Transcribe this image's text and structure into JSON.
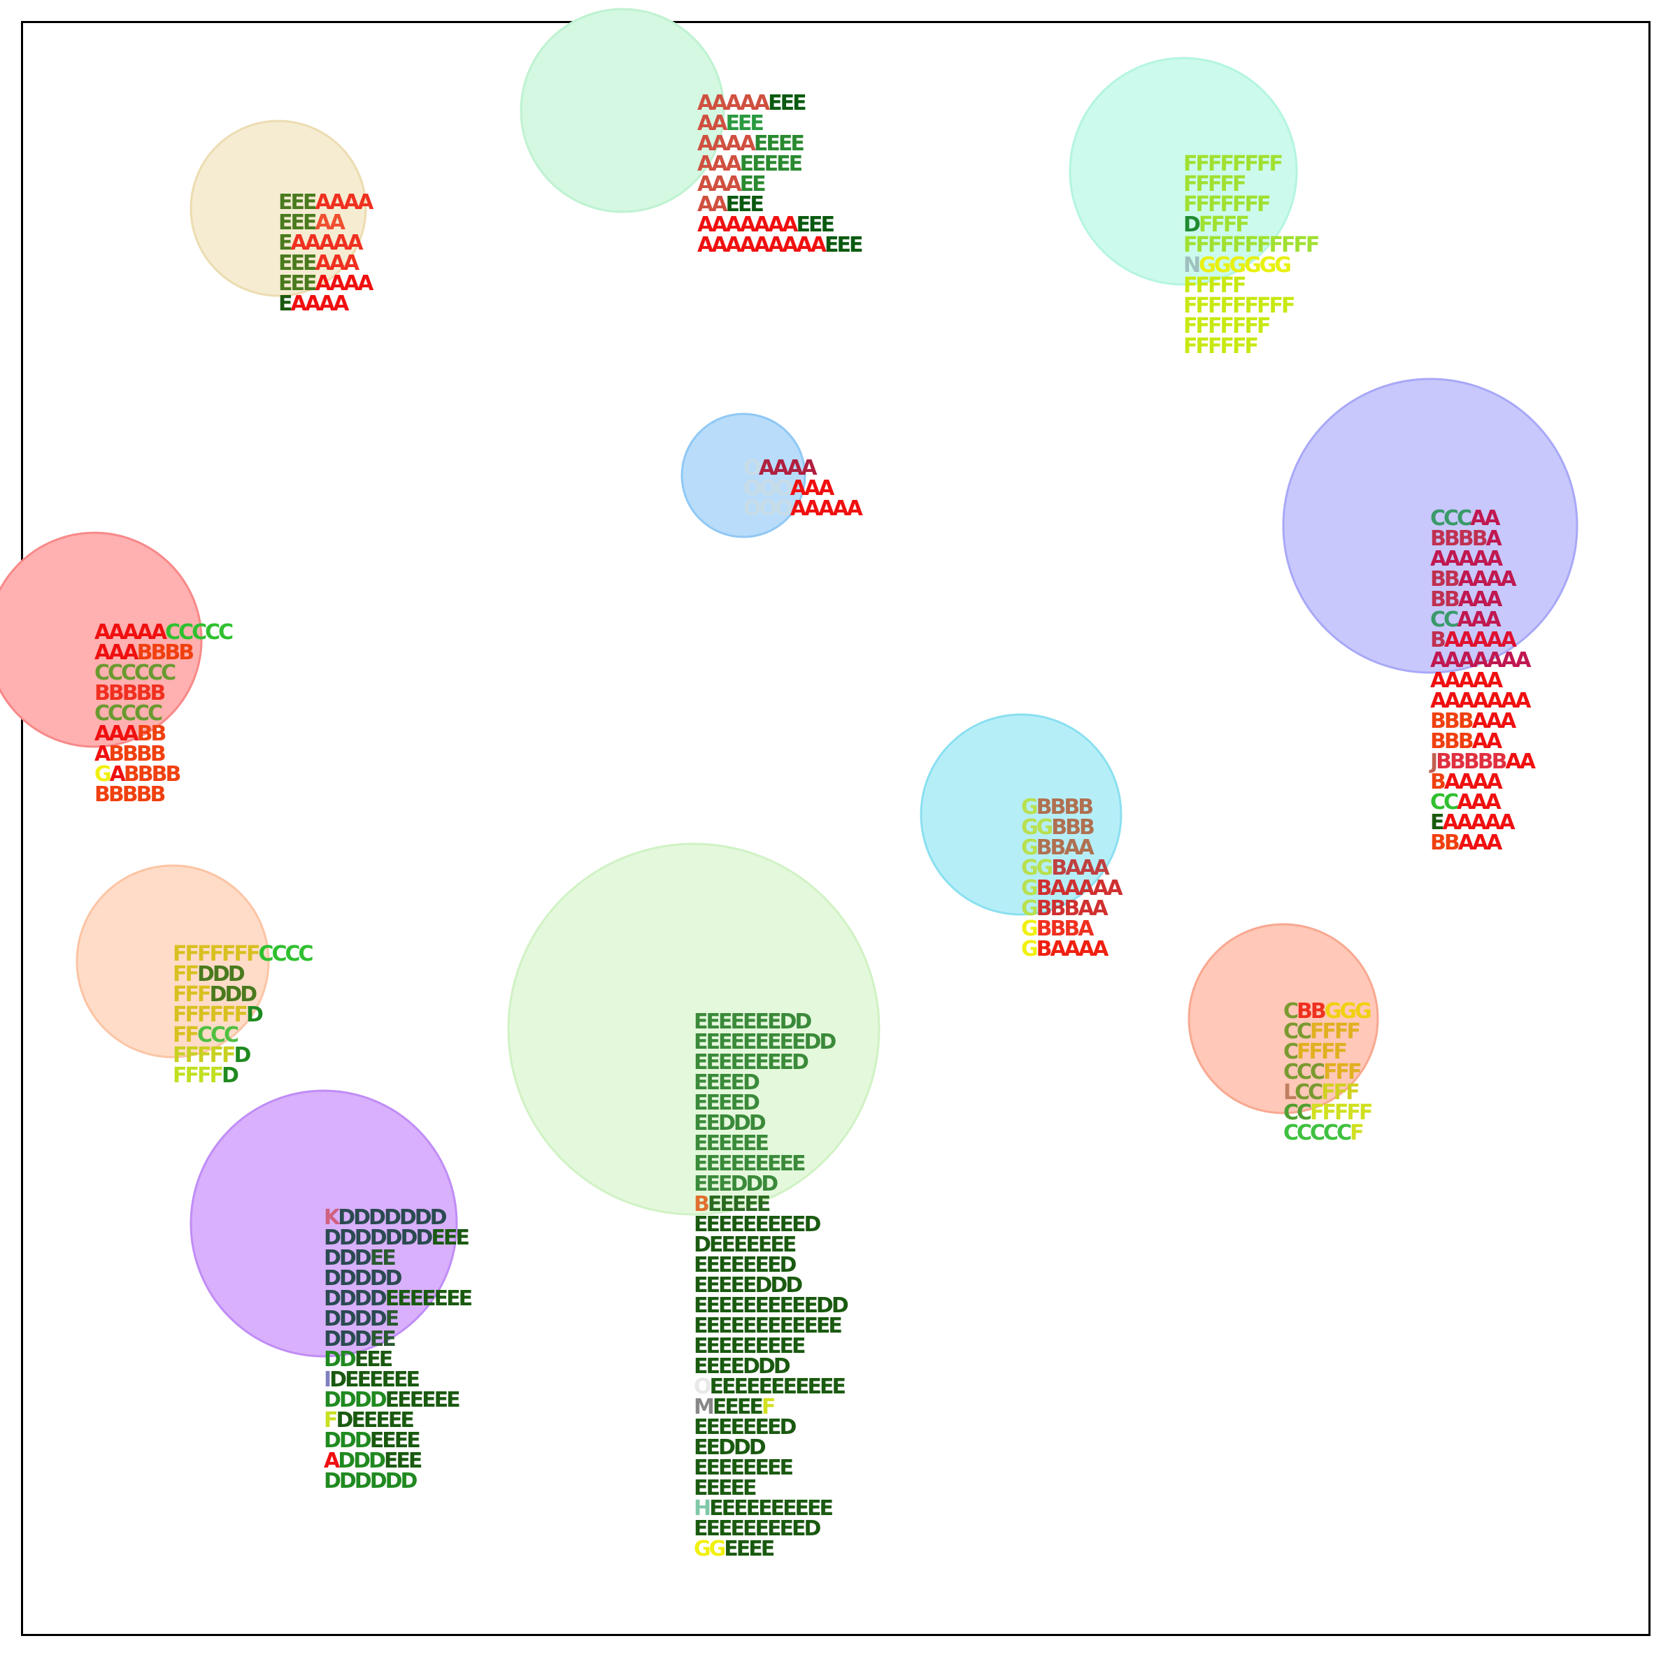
{
  "clusters": [
    {
      "id": "cream",
      "circle": {
        "fill": "#f5ecd2",
        "stroke": "#ecdcb0"
      },
      "lines": [
        [
          [
            "EEE",
            "#4a7a1e"
          ],
          [
            "AAAA",
            "#f03020"
          ]
        ],
        [
          [
            "EEE",
            "#4a7a1e"
          ],
          [
            "AA",
            "#f05030"
          ]
        ],
        [
          [
            "E",
            "#4a7a1e"
          ],
          [
            "AAAAA",
            "#f03020"
          ]
        ],
        [
          [
            "EEE",
            "#4a7a1e"
          ],
          [
            "AAA",
            "#f03020"
          ]
        ],
        [
          [
            "EEE",
            "#4a7a1e"
          ],
          [
            "AAAA",
            "#f01010"
          ]
        ],
        [
          [
            "E",
            "#1a5a10"
          ],
          [
            "AAAA",
            "#f01010"
          ]
        ]
      ]
    },
    {
      "id": "mint-top",
      "circle": {
        "fill": "#d4f8e2",
        "stroke": "#bff2d2"
      },
      "lines": [
        [
          [
            "AAAAA",
            "#d05040"
          ],
          [
            "EEE",
            "#0a5a10"
          ]
        ],
        [
          [
            "AA",
            "#d05040"
          ],
          [
            "EEE",
            "#2a9a40"
          ]
        ],
        [
          [
            "AAAA",
            "#d05040"
          ],
          [
            "EEEE",
            "#2a8a30"
          ]
        ],
        [
          [
            "AAA",
            "#d05040"
          ],
          [
            "EEEEE",
            "#2a8a30"
          ]
        ],
        [
          [
            "AAA",
            "#d05040"
          ],
          [
            "EE",
            "#2a8a30"
          ]
        ],
        [
          [
            "AA",
            "#d05040"
          ],
          [
            "EEE",
            "#0a5a10"
          ]
        ],
        [
          [
            "AAAAAAA",
            "#f01010"
          ],
          [
            "EEE",
            "#0a5a10"
          ]
        ],
        [
          [
            "AAAAAAAAA",
            "#f01010"
          ],
          [
            "EEE",
            "#0a5a10"
          ]
        ]
      ]
    },
    {
      "id": "aqua-top",
      "circle": {
        "fill": "#ccfaec",
        "stroke": "#b4f5e0"
      },
      "lines": [
        [
          [
            "FFFFFFFF",
            "#a0e030"
          ]
        ],
        [
          [
            "FFFFF",
            "#a0e030"
          ]
        ],
        [
          [
            "FFFFFFF",
            "#a0e030"
          ]
        ],
        [
          [
            "D",
            "#208a30"
          ],
          [
            "FFFF",
            "#a0e030"
          ]
        ],
        [
          [
            "FFFFFFFFFFF",
            "#a0e030"
          ]
        ],
        [
          [
            "N",
            "#a0c0c0"
          ],
          [
            "GGGGGG",
            "#e8f010"
          ]
        ],
        [
          [
            "FFFFF",
            "#c8e810"
          ]
        ],
        [
          [
            "FFFFFFFFF",
            "#c8e810"
          ]
        ],
        [
          [
            "FFFFFFF",
            "#c8e810"
          ]
        ],
        [
          [
            "FFFFFF",
            "#c8e810"
          ]
        ]
      ]
    },
    {
      "id": "sky-small",
      "circle": {
        "fill": "#b8dcfa",
        "stroke": "#90c8f5"
      },
      "lines": [
        [
          [
            "O",
            "#c8dce8"
          ],
          [
            "AAAA",
            "#b02040"
          ]
        ],
        [
          [
            "OOO",
            "#c8dce8"
          ],
          [
            "AAA",
            "#f01010"
          ]
        ],
        [
          [
            "OOO",
            "#c8dce8"
          ],
          [
            "AAAAA",
            "#f01010"
          ]
        ]
      ]
    },
    {
      "id": "lavender",
      "circle": {
        "fill": "#c8c8fc",
        "stroke": "#a8a8f8"
      },
      "lines": [
        [
          [
            "CCC",
            "#3a9a6a"
          ],
          [
            "AA",
            "#c01850"
          ]
        ],
        [
          [
            "BBBB",
            "#c03050"
          ],
          [
            "A",
            "#c01850"
          ]
        ],
        [
          [
            "AAAAA",
            "#c01850"
          ]
        ],
        [
          [
            "BB",
            "#c03050"
          ],
          [
            "AAAA",
            "#c01850"
          ]
        ],
        [
          [
            "BB",
            "#c03050"
          ],
          [
            "AAA",
            "#c01850"
          ]
        ],
        [
          [
            "CC",
            "#3a9a6a"
          ],
          [
            "AAA",
            "#c01850"
          ]
        ],
        [
          [
            "B",
            "#c03050"
          ],
          [
            "AAAAA",
            "#e01030"
          ]
        ],
        [
          [
            "AAAAAAA",
            "#c01850"
          ]
        ],
        [
          [
            "AAAAA",
            "#f01010"
          ]
        ],
        [
          [
            "AAAAAAA",
            "#f01010"
          ]
        ],
        [
          [
            "BBB",
            "#f04010"
          ],
          [
            "AAA",
            "#f01010"
          ]
        ],
        [
          [
            "BBB",
            "#f04010"
          ],
          [
            "AA",
            "#f01010"
          ]
        ],
        [
          [
            "J",
            "#c06050"
          ],
          [
            "BBBBB",
            "#e03040"
          ],
          [
            "AA",
            "#f01010"
          ]
        ],
        [
          [
            "B",
            "#f04010"
          ],
          [
            "AAAA",
            "#f01010"
          ]
        ],
        [
          [
            "CC",
            "#30c030"
          ],
          [
            "AAA",
            "#f01010"
          ]
        ],
        [
          [
            "E",
            "#1a5a10"
          ],
          [
            "AAAAA",
            "#f01010"
          ]
        ],
        [
          [
            "BB",
            "#f04010"
          ],
          [
            "AAA",
            "#f01010"
          ]
        ]
      ]
    },
    {
      "id": "red-left",
      "circle": {
        "fill": "#ffb0b0",
        "stroke": "#f88888"
      },
      "lines": [
        [
          [
            "AAAAA",
            "#f01010"
          ],
          [
            "CCCCC",
            "#30c030"
          ]
        ],
        [
          [
            "AAA",
            "#f01010"
          ],
          [
            "BBBB",
            "#f04010"
          ]
        ],
        [
          [
            "CCCCCC",
            "#6a9a30"
          ]
        ],
        [
          [
            "BBBBB",
            "#f03020"
          ]
        ],
        [
          [
            "CCCCC",
            "#6a9a30"
          ]
        ],
        [
          [
            "AAA",
            "#f01010"
          ],
          [
            "BB",
            "#f04010"
          ]
        ],
        [
          [
            "A",
            "#f01010"
          ],
          [
            "BBBB",
            "#f04010"
          ]
        ],
        [
          [
            "G",
            "#f0f010"
          ],
          [
            "A",
            "#f01010"
          ],
          [
            "BBBB",
            "#f04010"
          ]
        ],
        [
          [
            "BBBBB",
            "#f04010"
          ]
        ]
      ]
    },
    {
      "id": "cyan",
      "circle": {
        "fill": "#b6eef8",
        "stroke": "#8ae0f0"
      },
      "lines": [
        [
          [
            "G",
            "#b8e050"
          ],
          [
            "BBBB",
            "#b07050"
          ]
        ],
        [
          [
            "GG",
            "#b8e050"
          ],
          [
            "BBB",
            "#b07050"
          ]
        ],
        [
          [
            "G",
            "#b8e050"
          ],
          [
            "BBAA",
            "#b07050"
          ]
        ],
        [
          [
            "GG",
            "#b8e050"
          ],
          [
            "BAAA",
            "#c04040"
          ]
        ],
        [
          [
            "G",
            "#b8e050"
          ],
          [
            "BAAAAA",
            "#d03030"
          ]
        ],
        [
          [
            "G",
            "#b8e050"
          ],
          [
            "BBBAA",
            "#d03030"
          ]
        ],
        [
          [
            "G",
            "#f0f010"
          ],
          [
            "BBBA",
            "#f03020"
          ]
        ],
        [
          [
            "G",
            "#f0f010"
          ],
          [
            "BAAAA",
            "#f02010"
          ]
        ]
      ]
    },
    {
      "id": "peach",
      "circle": {
        "fill": "#fedcc8",
        "stroke": "#fcc4a4"
      },
      "lines": [
        [
          [
            "FFFFFFF",
            "#d8c020"
          ],
          [
            "CCCC",
            "#30c030"
          ]
        ],
        [
          [
            "FF",
            "#d8c020"
          ],
          [
            "DDD",
            "#4a7a1e"
          ]
        ],
        [
          [
            "FFF",
            "#d8c020"
          ],
          [
            "DDD",
            "#4a7a1e"
          ]
        ],
        [
          [
            "FFFFFF",
            "#d8c020"
          ],
          [
            "D",
            "#208a20"
          ]
        ],
        [
          [
            "FF",
            "#d8c020"
          ],
          [
            "CCC",
            "#50c040"
          ]
        ],
        [
          [
            "FFFFF",
            "#c8d020"
          ],
          [
            "D",
            "#208a20"
          ]
        ],
        [
          [
            "FFFF",
            "#c0e020"
          ],
          [
            "D",
            "#208a20"
          ]
        ]
      ]
    },
    {
      "id": "salmon",
      "circle": {
        "fill": "#ffc8b8",
        "stroke": "#f8a890"
      },
      "lines": [
        [
          [
            "C",
            "#7a9a30"
          ],
          [
            "BB",
            "#f03020"
          ],
          [
            "GGG",
            "#f0d010"
          ]
        ],
        [
          [
            "CC",
            "#7a9a30"
          ],
          [
            "FFFF",
            "#e0b020"
          ]
        ],
        [
          [
            "C",
            "#7a9a30"
          ],
          [
            "FFFF",
            "#e0b020"
          ]
        ],
        [
          [
            "CCC",
            "#7a9a30"
          ],
          [
            "FFF",
            "#e0b020"
          ]
        ],
        [
          [
            "L",
            "#c08060"
          ],
          [
            "CC",
            "#7a9a30"
          ],
          [
            "FFF",
            "#d0d020"
          ]
        ],
        [
          [
            "CC",
            "#50a030"
          ],
          [
            "FFFFF",
            "#d0e020"
          ]
        ],
        [
          [
            "CCCCC",
            "#40c040"
          ],
          [
            "F",
            "#d0e020"
          ]
        ]
      ]
    },
    {
      "id": "purple",
      "circle": {
        "fill": "#d8b0fc",
        "stroke": "#c08cf6"
      },
      "lines": [
        [
          [
            "K",
            "#d06080"
          ],
          [
            "DDDDDDD",
            "#2a4a50"
          ]
        ],
        [
          [
            "DDDDDDD",
            "#2a4a50"
          ],
          [
            "EEE",
            "#1a5a10"
          ]
        ],
        [
          [
            "DDD",
            "#2a4a50"
          ],
          [
            "EE",
            "#2a5a30"
          ]
        ],
        [
          [
            "DDDDD",
            "#2a4a50"
          ]
        ],
        [
          [
            "DDDD",
            "#2a4a50"
          ],
          [
            "EEEEEEE",
            "#1a5a10"
          ]
        ],
        [
          [
            "DDDD",
            "#2a4a50"
          ],
          [
            "E",
            "#2a5a30"
          ]
        ],
        [
          [
            "DDD",
            "#2a4a50"
          ],
          [
            "EE",
            "#2a5a30"
          ]
        ],
        [
          [
            "DD",
            "#208a20"
          ],
          [
            "EEE",
            "#1a5a10"
          ]
        ],
        [
          [
            "I",
            "#8080c0"
          ],
          [
            "DEEEEEE",
            "#1a5a10"
          ]
        ],
        [
          [
            "DDDD",
            "#208a20"
          ],
          [
            "EEEEEE",
            "#1a5a10"
          ]
        ],
        [
          [
            "F",
            "#c8e020"
          ],
          [
            "DEEEEE",
            "#1a5a10"
          ]
        ],
        [
          [
            "DDD",
            "#208a20"
          ],
          [
            "EEEE",
            "#1a5a10"
          ]
        ],
        [
          [
            "A",
            "#f01010"
          ],
          [
            "DDD",
            "#208a20"
          ],
          [
            "EEE",
            "#1a5a10"
          ]
        ],
        [
          [
            "DDDDDD",
            "#208a20"
          ]
        ]
      ]
    },
    {
      "id": "green-big",
      "circle": {
        "fill": "#e4f8dc",
        "stroke": "#d0f2c4"
      },
      "lines": [
        [
          [
            "EEEEEEEDD",
            "#3a8a3a"
          ]
        ],
        [
          [
            "EEEEEEEEEDD",
            "#3a8a3a"
          ]
        ],
        [
          [
            "EEEEEEEED",
            "#3a8a3a"
          ]
        ],
        [
          [
            "EEEED",
            "#3a8a3a"
          ]
        ],
        [
          [
            "EEEED",
            "#3a8a3a"
          ]
        ],
        [
          [
            "EEDDD",
            "#3a8a3a"
          ]
        ],
        [
          [
            "EEEEEE",
            "#3a8a3a"
          ]
        ],
        [
          [
            "EEEEEEEEE",
            "#3a8a3a"
          ]
        ],
        [
          [
            "EEEDDD",
            "#3a8a3a"
          ]
        ],
        [
          [
            "B",
            "#e07030"
          ],
          [
            "EEEEE",
            "#2a6a20"
          ]
        ],
        [
          [
            "EEEEEEEEED",
            "#1a5a10"
          ]
        ],
        [
          [
            "DEEEEEEE",
            "#1a5a10"
          ]
        ],
        [
          [
            "EEEEEEED",
            "#1a5a10"
          ]
        ],
        [
          [
            "EEEEEDDD",
            "#1a5a10"
          ]
        ],
        [
          [
            "EEEEEEEEEEDD",
            "#1a5a10"
          ]
        ],
        [
          [
            "EEEEEEEEEEEE",
            "#1a5a10"
          ]
        ],
        [
          [
            "EEEEEEEEE",
            "#1a5a10"
          ]
        ],
        [
          [
            "EEEEDDD",
            "#1a5a10"
          ]
        ],
        [
          [
            "O",
            "#e8e8e8"
          ],
          [
            "EEEEEEEEEEE",
            "#1a5a10"
          ]
        ],
        [
          [
            "M",
            "#888888"
          ],
          [
            "EEEE",
            "#1a5a10"
          ],
          [
            "F",
            "#d0e020"
          ]
        ],
        [
          [
            "EEEEEEED",
            "#1a5a10"
          ]
        ],
        [
          [
            "EEDDD",
            "#1a5a10"
          ]
        ],
        [
          [
            "EEEEEEEE",
            "#1a5a10"
          ]
        ],
        [
          [
            "EEEEE",
            "#1a5a10"
          ]
        ],
        [
          [
            "H",
            "#80c8a8"
          ],
          [
            "EEEEEEEEEE",
            "#1a5a10"
          ]
        ],
        [
          [
            "EEEEEEEEED",
            "#1a5a10"
          ]
        ],
        [
          [
            "GG",
            "#f0f010"
          ],
          [
            "EEEE",
            "#1a5a10"
          ]
        ]
      ]
    }
  ]
}
